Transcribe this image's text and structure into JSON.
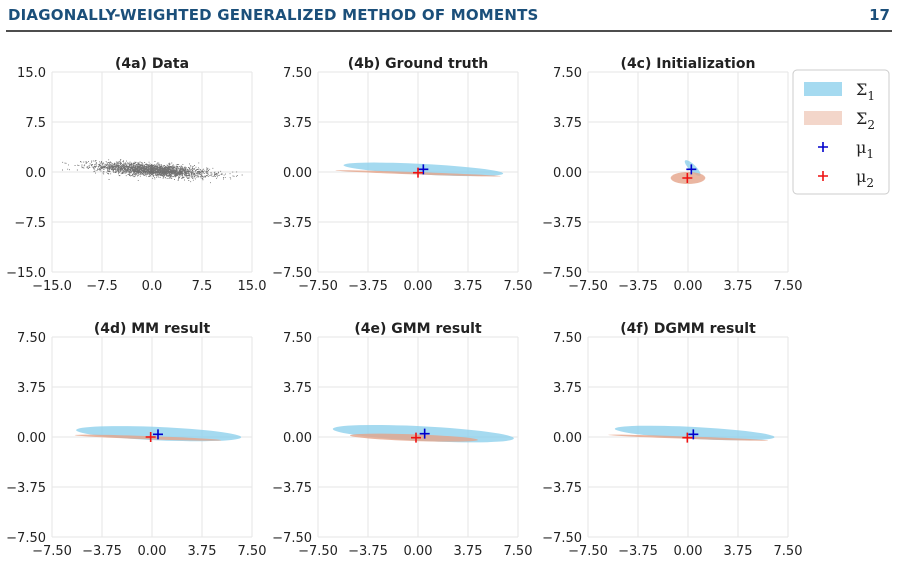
{
  "header": {
    "running_title": "DIAGONALLY-WEIGHTED GENERALIZED METHOD OF MOMENTS",
    "page_number": "17"
  },
  "colors": {
    "sigma1": "#87ceeb",
    "sigma2": "#e5a48a",
    "mu1": "#0000cc",
    "mu2": "#ee1111",
    "grid": "#e6e6e6",
    "data_points": "#000000"
  },
  "legend": {
    "placement": "right",
    "entries": [
      {
        "symbol": "patch",
        "color_key": "sigma1",
        "label": "Σ",
        "subscript": "1"
      },
      {
        "symbol": "patch",
        "color_key": "sigma2",
        "label": "Σ",
        "subscript": "2"
      },
      {
        "symbol": "plus",
        "color_key": "mu1",
        "label": "μ",
        "subscript": "1"
      },
      {
        "symbol": "plus",
        "color_key": "mu2",
        "label": "μ",
        "subscript": "2"
      }
    ]
  },
  "chart_data": [
    {
      "type": "scatter",
      "title": "(4a) Data",
      "xlim": [
        -15,
        15
      ],
      "ylim": [
        -15,
        15
      ],
      "xticks": [
        "−15.0",
        "−7.5",
        "0.0",
        "7.5",
        "15.0"
      ],
      "yticks": [
        "15.0",
        "7.5",
        "0.0",
        "−7.5",
        "−15.0"
      ],
      "grid": true,
      "cloud": {
        "center": [
          0,
          0.3
        ],
        "sx": 4.2,
        "sy": 0.45,
        "slope": -0.07,
        "n_points": 2600
      }
    },
    {
      "type": "scatter",
      "title": "(4b) Ground truth",
      "xlim": [
        -7.5,
        7.5
      ],
      "ylim": [
        -7.5,
        7.5
      ],
      "xticks": [
        "−7.50",
        "−3.75",
        "0.00",
        "3.75",
        "7.50"
      ],
      "yticks": [
        "7.50",
        "3.75",
        "0.00",
        "−3.75",
        "−7.50"
      ],
      "grid": true,
      "sigma1": {
        "center": [
          0.4,
          0.2
        ],
        "rx": 6.0,
        "ry": 0.4,
        "angle_deg": -3
      },
      "sigma2": {
        "center": [
          0.0,
          -0.1
        ],
        "rx": 6.2,
        "ry": 0.08,
        "angle_deg": -2
      },
      "mu1": [
        0.4,
        0.2
      ],
      "mu2": [
        0.0,
        -0.05
      ]
    },
    {
      "type": "scatter",
      "title": "(4c) Initialization",
      "xlim": [
        -7.5,
        7.5
      ],
      "ylim": [
        -7.5,
        7.5
      ],
      "xticks": [
        "−7.50",
        "−3.75",
        "0.00",
        "3.75",
        "7.50"
      ],
      "yticks": [
        "7.50",
        "3.75",
        "0.00",
        "−3.75",
        "−7.50"
      ],
      "grid": true,
      "sigma1": {
        "center": [
          0.35,
          0.3
        ],
        "rx": 0.8,
        "ry": 0.25,
        "angle_deg": -45
      },
      "sigma2": {
        "center": [
          0.0,
          -0.45
        ],
        "rx": 1.3,
        "ry": 0.45,
        "angle_deg": 0
      },
      "mu1": [
        0.25,
        0.2
      ],
      "mu2": [
        -0.05,
        -0.45
      ]
    },
    {
      "type": "scatter",
      "title": "(4d) MM result",
      "xlim": [
        -7.5,
        7.5
      ],
      "ylim": [
        -7.5,
        7.5
      ],
      "xticks": [
        "−7.50",
        "−3.75",
        "0.00",
        "3.75",
        "7.50"
      ],
      "yticks": [
        "7.50",
        "3.75",
        "0.00",
        "−3.75",
        "−7.50"
      ],
      "grid": true,
      "sigma1": {
        "center": [
          0.5,
          0.25
        ],
        "rx": 6.2,
        "ry": 0.5,
        "angle_deg": -2.5
      },
      "sigma2": {
        "center": [
          -0.3,
          -0.05
        ],
        "rx": 5.5,
        "ry": 0.12,
        "angle_deg": -2
      },
      "mu1": [
        0.45,
        0.2
      ],
      "mu2": [
        -0.1,
        0.0
      ]
    },
    {
      "type": "scatter",
      "title": "(4e) GMM result",
      "xlim": [
        -7.5,
        7.5
      ],
      "ylim": [
        -7.5,
        7.5
      ],
      "xticks": [
        "−7.50",
        "−3.75",
        "0.00",
        "3.75",
        "7.50"
      ],
      "yticks": [
        "7.50",
        "3.75",
        "0.00",
        "−3.75",
        "−7.50"
      ],
      "grid": true,
      "sigma1": {
        "center": [
          0.4,
          0.25
        ],
        "rx": 6.8,
        "ry": 0.55,
        "angle_deg": -3
      },
      "sigma2": {
        "center": [
          -0.3,
          -0.05
        ],
        "rx": 4.8,
        "ry": 0.25,
        "angle_deg": -2
      },
      "mu1": [
        0.5,
        0.25
      ],
      "mu2": [
        -0.15,
        -0.05
      ]
    },
    {
      "type": "scatter",
      "title": "(4f) DGMM result",
      "xlim": [
        -7.5,
        7.5
      ],
      "ylim": [
        -7.5,
        7.5
      ],
      "xticks": [
        "−7.50",
        "−3.75",
        "0.00",
        "3.75",
        "7.50"
      ],
      "yticks": [
        "7.50",
        "3.75",
        "0.00",
        "−3.75",
        "−7.50"
      ],
      "grid": true,
      "sigma1": {
        "center": [
          0.5,
          0.3
        ],
        "rx": 6.0,
        "ry": 0.45,
        "angle_deg": -3
      },
      "sigma2": {
        "center": [
          0.0,
          -0.05
        ],
        "rx": 6.0,
        "ry": 0.08,
        "angle_deg": -2
      },
      "mu1": [
        0.4,
        0.2
      ],
      "mu2": [
        -0.05,
        -0.05
      ]
    }
  ]
}
